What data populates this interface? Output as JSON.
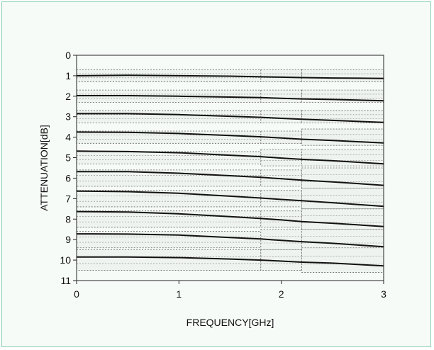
{
  "chart_data": {
    "type": "line",
    "title": "",
    "xlabel": "FREQUENCY[GHz]",
    "ylabel": "ATTENUATION[dB]",
    "xlim": [
      0,
      3
    ],
    "ylim": [
      0,
      11
    ],
    "y_inverted": true,
    "x_ticks": [
      "0",
      "1",
      "2",
      "3"
    ],
    "y_ticks": [
      "0",
      "1",
      "2",
      "3",
      "4",
      "5",
      "6",
      "7",
      "8",
      "9",
      "10",
      "11"
    ],
    "grid": "dotted tolerance bands",
    "line_color": "#111111",
    "x": [
      0,
      0.5,
      1.0,
      1.5,
      1.8,
      2.0,
      2.2,
      2.5,
      3.0
    ],
    "series": [
      {
        "values": [
          1.0,
          0.98,
          1.0,
          1.02,
          1.05,
          1.07,
          1.09,
          1.11,
          1.13
        ]
      },
      {
        "values": [
          1.97,
          1.97,
          2.0,
          2.04,
          2.07,
          2.1,
          2.13,
          2.16,
          2.22
        ]
      },
      {
        "values": [
          2.85,
          2.85,
          2.9,
          2.98,
          3.03,
          3.08,
          3.12,
          3.18,
          3.28
        ]
      },
      {
        "values": [
          3.75,
          3.76,
          3.82,
          3.92,
          3.98,
          4.04,
          4.1,
          4.16,
          4.28
        ]
      },
      {
        "values": [
          4.68,
          4.7,
          4.76,
          4.88,
          4.95,
          5.02,
          5.08,
          5.15,
          5.3
        ]
      },
      {
        "values": [
          5.68,
          5.68,
          5.76,
          5.88,
          5.96,
          6.03,
          6.1,
          6.18,
          6.35
        ]
      },
      {
        "values": [
          6.63,
          6.66,
          6.74,
          6.88,
          6.97,
          7.04,
          7.1,
          7.2,
          7.38
        ]
      },
      {
        "values": [
          7.63,
          7.65,
          7.74,
          7.88,
          7.97,
          8.04,
          8.12,
          8.2,
          8.36
        ]
      },
      {
        "values": [
          8.72,
          8.73,
          8.78,
          8.9,
          8.97,
          9.04,
          9.1,
          9.18,
          9.35
        ]
      },
      {
        "values": [
          9.85,
          9.85,
          9.88,
          9.95,
          10.0,
          10.05,
          10.1,
          10.15,
          10.28
        ]
      }
    ],
    "tolerance_bands": [
      {
        "x_start": 0,
        "x_end": 1.8,
        "half_width": [
          0.3,
          0.3,
          0.3,
          0.3,
          0.3,
          0.4,
          0.4,
          0.4,
          0.4,
          0.5
        ]
      },
      {
        "x_start": 1.8,
        "x_end": 2.2,
        "half_width": [
          0.3,
          0.3,
          0.3,
          0.3,
          0.4,
          0.4,
          0.4,
          0.4,
          0.5,
          0.5
        ]
      },
      {
        "x_start": 2.2,
        "x_end": 3.0,
        "half_width": [
          0.3,
          0.3,
          0.3,
          0.4,
          0.4,
          0.5,
          0.5,
          0.5,
          0.5,
          0.6
        ]
      }
    ]
  }
}
